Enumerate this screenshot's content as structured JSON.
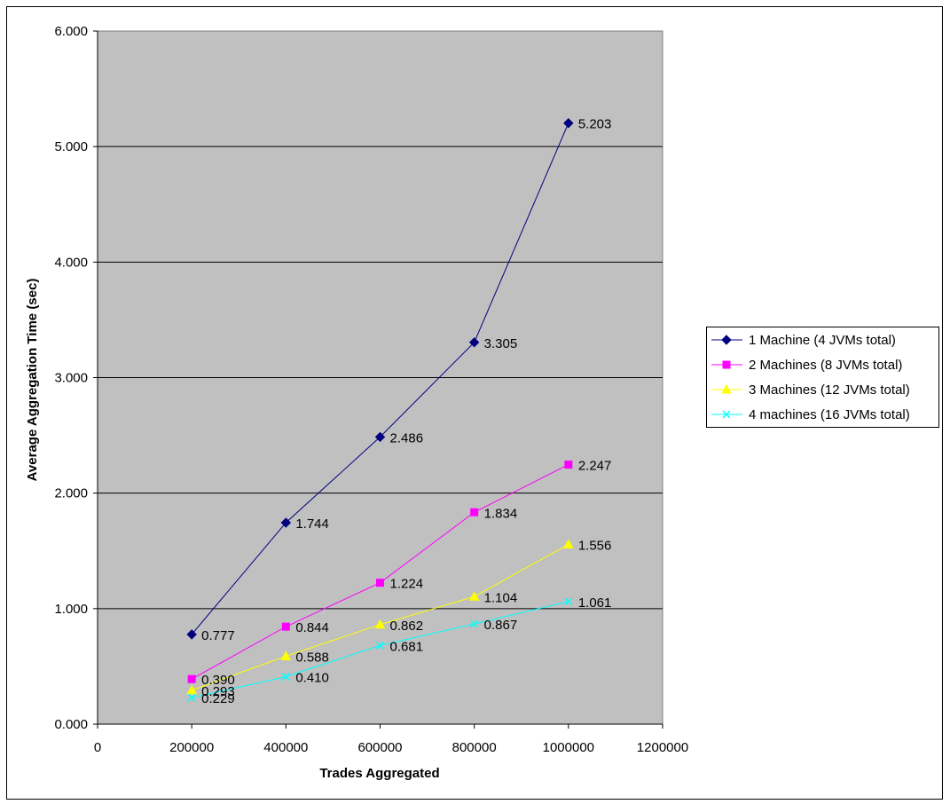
{
  "chart_data": {
    "type": "line",
    "title": "",
    "xlabel": "Trades Aggregated",
    "ylabel": "Average Aggregation Time (sec)",
    "xlim": [
      0,
      1200000
    ],
    "ylim": [
      0,
      6
    ],
    "xticks": [
      "0",
      "200000",
      "400000",
      "600000",
      "800000",
      "1000000",
      "1200000"
    ],
    "yticks": [
      "0.000",
      "1.000",
      "2.000",
      "3.000",
      "4.000",
      "5.000",
      "6.000"
    ],
    "grid": true,
    "legend_position": "right",
    "x": [
      200000,
      400000,
      600000,
      800000,
      1000000
    ],
    "series": [
      {
        "name": "1 Machine (4 JVMs total)",
        "color": "#000080",
        "marker": "diamond",
        "values": [
          0.777,
          1.744,
          2.486,
          3.305,
          5.203
        ],
        "labels": [
          "0.777",
          "1.744",
          "2.486",
          "3.305",
          "5.203"
        ]
      },
      {
        "name": "2 Machines (8 JVMs total)",
        "color": "#FF00FF",
        "marker": "square",
        "values": [
          0.39,
          0.844,
          1.224,
          1.834,
          2.247
        ],
        "labels": [
          "0.390",
          "0.844",
          "1.224",
          "1.834",
          "2.247"
        ]
      },
      {
        "name": "3 Machines (12 JVMs total)",
        "color": "#FFFF00",
        "marker": "triangle",
        "values": [
          0.293,
          0.588,
          0.862,
          1.104,
          1.556
        ],
        "labels": [
          "0.293",
          "0.588",
          "0.862",
          "1.104",
          "1.556"
        ]
      },
      {
        "name": "4 machines (16 JVMs total)",
        "color": "#00FFFF",
        "marker": "x",
        "values": [
          0.229,
          0.41,
          0.681,
          0.867,
          1.061
        ],
        "labels": [
          "0.229",
          "0.410",
          "0.681",
          "0.867",
          "1.061"
        ]
      }
    ]
  }
}
